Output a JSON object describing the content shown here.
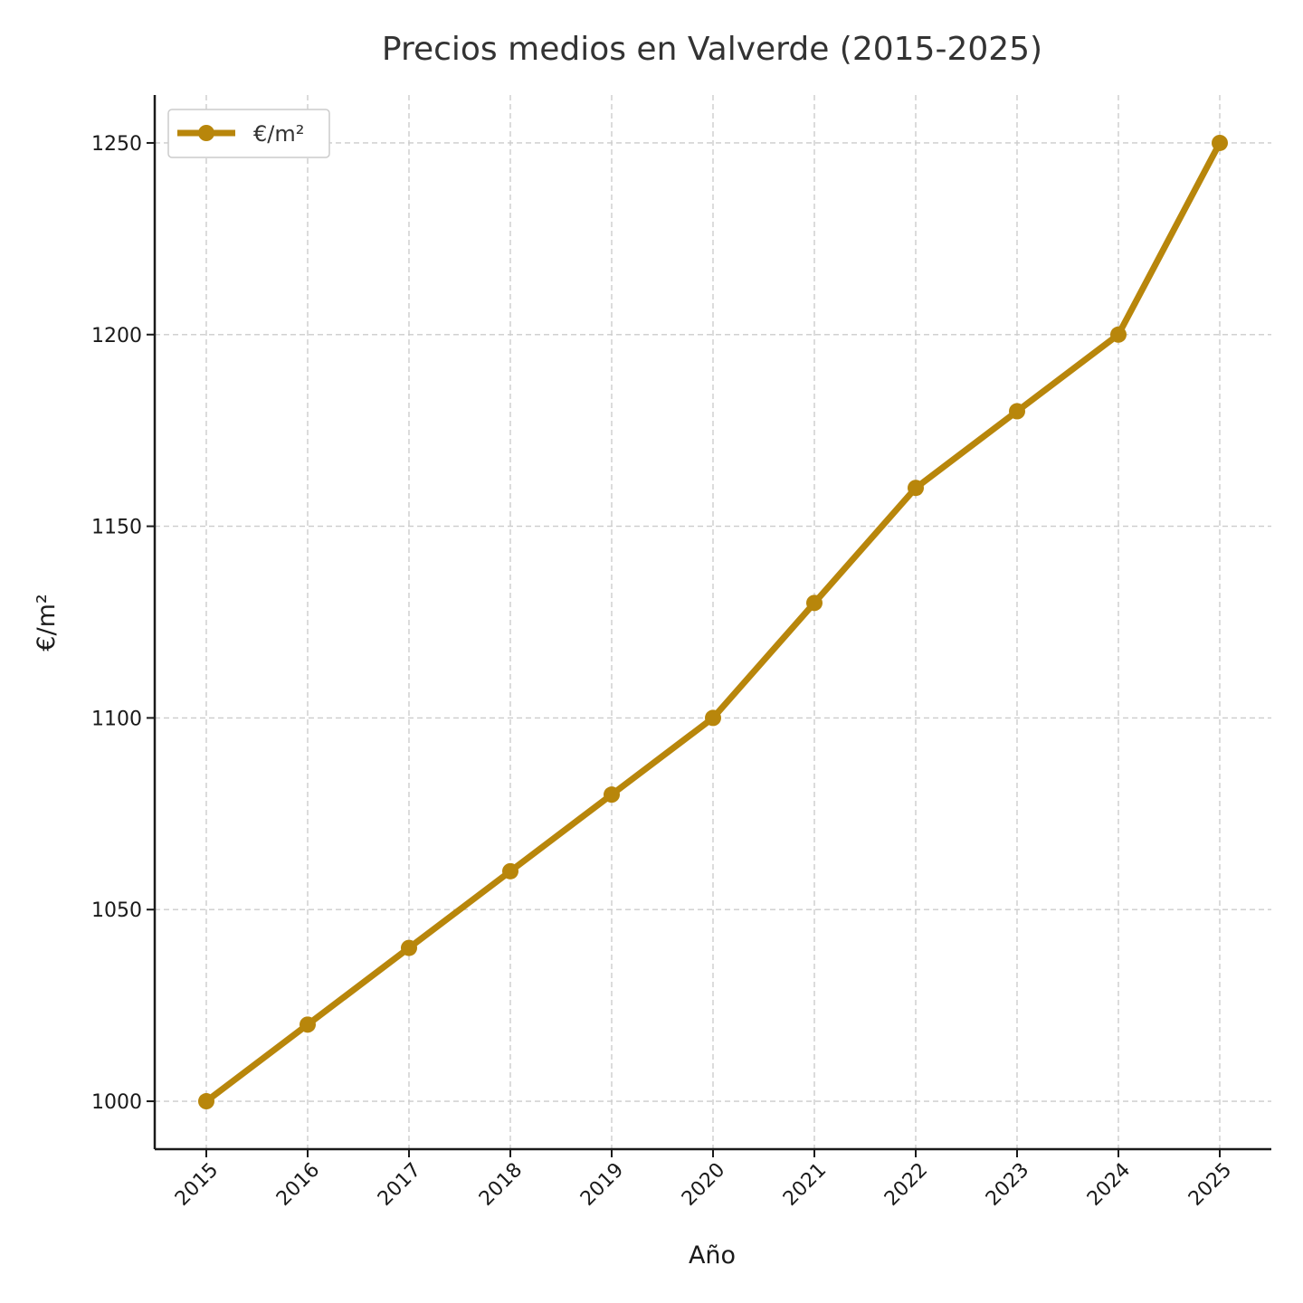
{
  "chart_data": {
    "type": "line",
    "title": "Precios medios en Valverde (2015-2025)",
    "xlabel": "Año",
    "ylabel": "€/m²",
    "x": [
      "2015",
      "2016",
      "2017",
      "2018",
      "2019",
      "2020",
      "2021",
      "2022",
      "2023",
      "2024",
      "2025"
    ],
    "series": [
      {
        "name": "€/m²",
        "values": [
          1000,
          1020,
          1040,
          1060,
          1080,
          1100,
          1130,
          1160,
          1180,
          1200,
          1250
        ],
        "color": "#b8860b"
      }
    ],
    "yticks": [
      1000,
      1050,
      1100,
      1150,
      1200,
      1250
    ],
    "ylim": [
      987.5,
      1262.5
    ],
    "grid": true,
    "legend_position": "top-left"
  }
}
